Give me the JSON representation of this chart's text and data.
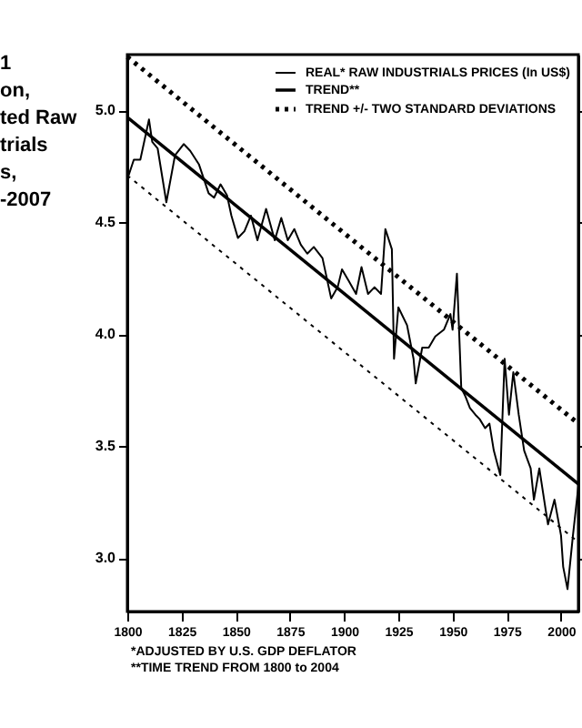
{
  "chart_data": {
    "type": "line",
    "title": "1\non,\nted Raw\ntrials\ns,\n-2007",
    "annotations": [
      "*ADJUSTED BY U.S. GDP DEFLATOR",
      "**TIME TREND FROM 1800 to 2004"
    ],
    "series": [
      {
        "name": "REAL* RAW INDUSTRIALS PRICES (In US$)",
        "color": "#000000",
        "line_style": "solid",
        "x": [
          1800.6,
          1803,
          1806,
          1810,
          1811.5,
          1814,
          1818,
          1822,
          1826,
          1829,
          1833,
          1837.5,
          1840,
          1843,
          1846,
          1848,
          1851,
          1854,
          1857,
          1860,
          1864,
          1868,
          1871,
          1874,
          1877,
          1880,
          1883,
          1886,
          1890,
          1894,
          1897,
          1899,
          1902,
          1905.5,
          1908,
          1911,
          1914,
          1917,
          1919,
          1922,
          1923,
          1925,
          1929,
          1932,
          1933,
          1936,
          1939,
          1942,
          1946,
          1949,
          1950,
          1952,
          1954,
          1956,
          1958,
          1960.5,
          1962.5,
          1965,
          1967,
          1969,
          1972,
          1974,
          1976,
          1978,
          1980.5,
          1983,
          1986,
          1987.5,
          1990,
          1993,
          1994,
          1997,
          2000,
          2001,
          2003,
          2005.5,
          2008
        ],
        "values": [
          4.71,
          4.78,
          4.78,
          4.96,
          4.86,
          4.83,
          4.59,
          4.8,
          4.85,
          4.82,
          4.76,
          4.63,
          4.61,
          4.67,
          4.62,
          4.53,
          4.43,
          4.46,
          4.53,
          4.42,
          4.56,
          4.42,
          4.52,
          4.42,
          4.47,
          4.4,
          4.36,
          4.39,
          4.34,
          4.16,
          4.21,
          4.29,
          4.24,
          4.18,
          4.3,
          4.18,
          4.21,
          4.18,
          4.47,
          4.38,
          3.89,
          4.12,
          4.04,
          3.89,
          3.78,
          3.94,
          3.94,
          3.99,
          4.02,
          4.09,
          4.02,
          4.27,
          3.76,
          3.72,
          3.67,
          3.64,
          3.62,
          3.58,
          3.6,
          3.48,
          3.37,
          3.89,
          3.64,
          3.83,
          3.64,
          3.48,
          3.4,
          3.26,
          3.4,
          3.21,
          3.15,
          3.26,
          3.1,
          2.96,
          2.86,
          3.1,
          3.32
        ]
      },
      {
        "name": "TREND**",
        "color": "#000000",
        "line_style": "solid",
        "x": [
          1800,
          2008
        ],
        "values": [
          4.97,
          3.33
        ]
      },
      {
        "name": "TREND +/- TWO STANDARD DEVIATIONS",
        "color": "#000000",
        "line_style": "dotted",
        "x": [
          1800,
          2008
        ],
        "values": [
          5.24,
          3.6
        ]
      },
      {
        "color": "#000000",
        "line_style": "dotted",
        "x": [
          1800,
          2008
        ],
        "values": [
          4.71,
          3.07
        ]
      }
    ],
    "xlim": [
      1800,
      2008
    ],
    "xticks": [
      1800,
      1825,
      1850,
      1875,
      1900,
      1925,
      1950,
      1975,
      2000
    ],
    "ylim": [
      2.76,
      5.25
    ],
    "yticks": [
      {
        "value": 3,
        "label": "3.0"
      },
      3.5,
      {
        "value": 4,
        "label": "4.0"
      },
      4.5,
      {
        "value": 5,
        "label": "5.0"
      }
    ],
    "legend": "top right",
    "grid": false
  }
}
